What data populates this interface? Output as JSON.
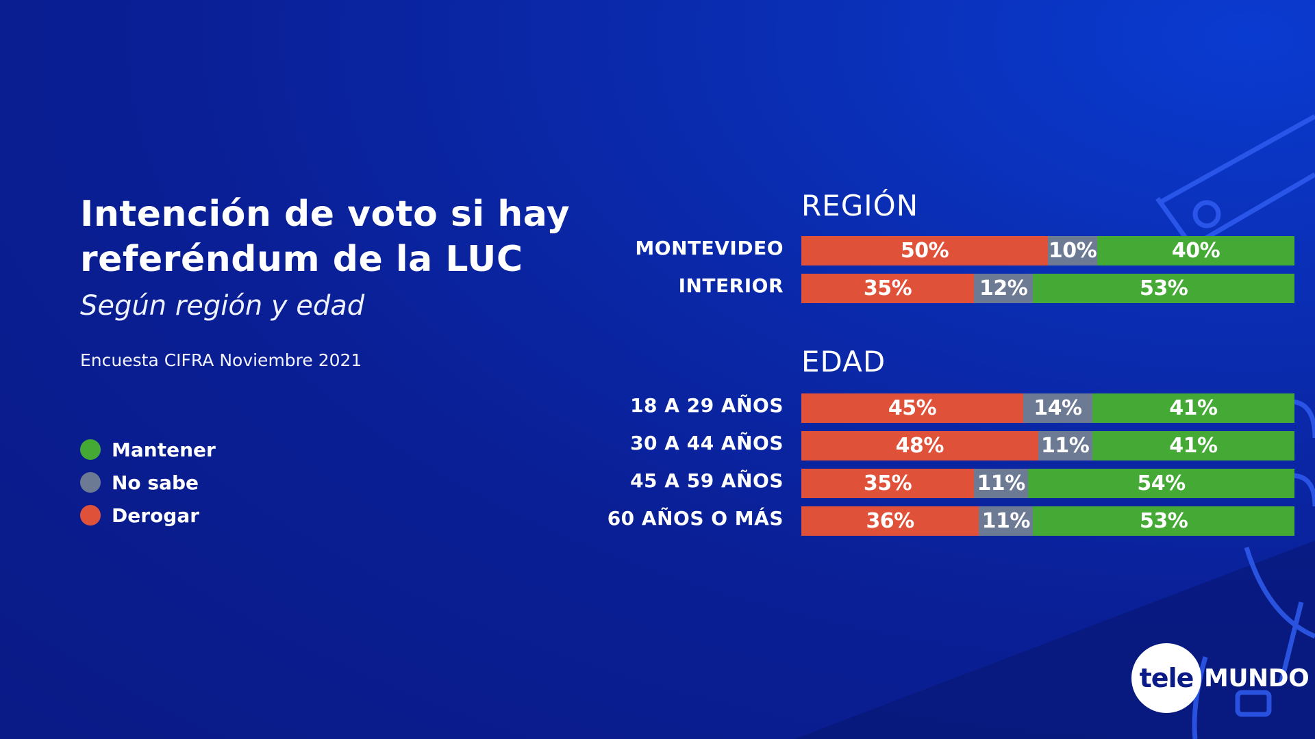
{
  "header": {
    "title": "Intención de voto si hay referéndum de la LUC",
    "subtitle": "Según región y edad",
    "source": "Encuesta CIFRA Noviembre 2021"
  },
  "legend": [
    {
      "label": "Mantener",
      "color": "#44aa35"
    },
    {
      "label": "No sabe",
      "color": "#6d7a93"
    },
    {
      "label": "Derogar",
      "color": "#e0513a"
    }
  ],
  "colors": {
    "derogar": "#e0513a",
    "no_sabe": "#6d7a93",
    "mantener": "#44aa35"
  },
  "logo": {
    "part1": "tele",
    "part2": "MUNDO"
  },
  "chart_data": {
    "type": "bar",
    "orientation": "horizontal-stacked-100",
    "title": "Intención de voto si hay referéndum de la LUC",
    "series_order": [
      "Derogar",
      "No sabe",
      "Mantener"
    ],
    "groups": [
      {
        "name": "REGIÓN",
        "rows": [
          {
            "label": "MONTEVIDEO",
            "derogar": 50,
            "no_sabe": 10,
            "mantener": 40
          },
          {
            "label": "INTERIOR",
            "derogar": 35,
            "no_sabe": 12,
            "mantener": 53
          }
        ]
      },
      {
        "name": "EDAD",
        "rows": [
          {
            "label": "18 A 29 AÑOS",
            "derogar": 45,
            "no_sabe": 14,
            "mantener": 41
          },
          {
            "label": "30 A 44 AÑOS",
            "derogar": 48,
            "no_sabe": 11,
            "mantener": 41
          },
          {
            "label": "45 A 59 AÑOS",
            "derogar": 35,
            "no_sabe": 11,
            "mantener": 54
          },
          {
            "label": "60 AÑOS O MÁS",
            "derogar": 36,
            "no_sabe": 11,
            "mantener": 53
          }
        ]
      }
    ]
  }
}
